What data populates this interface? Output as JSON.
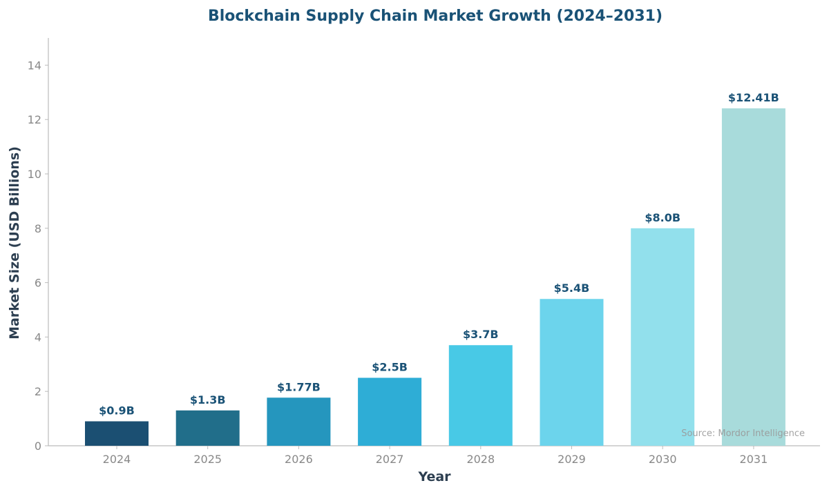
{
  "chart_data": {
    "type": "bar",
    "title": "Blockchain Supply Chain Market Growth (2024–2031)",
    "xlabel": "Year",
    "ylabel": "Market Size (USD Billions)",
    "categories": [
      "2024",
      "2025",
      "2026",
      "2027",
      "2028",
      "2029",
      "2030",
      "2031"
    ],
    "values": [
      0.9,
      1.3,
      1.77,
      2.5,
      3.7,
      5.4,
      8.0,
      12.41
    ],
    "data_labels": [
      "$0.9B",
      "$1.3B",
      "$1.77B",
      "$2.5B",
      "$3.7B",
      "$5.4B",
      "$8.0B",
      "$12.41B"
    ],
    "colors": [
      "#1b4f72",
      "#216e8a",
      "#2596be",
      "#2eadd6",
      "#48c9e6",
      "#6cd4ec",
      "#92e0ec",
      "#a8dbdb"
    ],
    "ylim": [
      0,
      15
    ],
    "yticks": [
      0,
      2,
      4,
      6,
      8,
      10,
      12,
      14
    ],
    "grid": false,
    "source": "Source: Mordor Intelligence"
  }
}
